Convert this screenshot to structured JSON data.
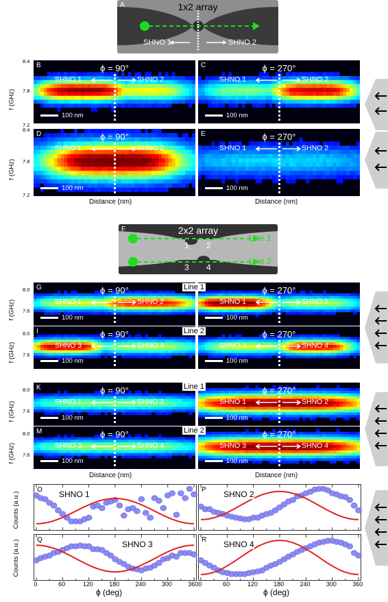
{
  "panelA": {
    "letter": "A",
    "title": "1x2 array",
    "shno_left": "SHNO 1",
    "shno_right": "SHNO 2"
  },
  "panelF": {
    "letter": "F",
    "title": "2x2 array",
    "n1": "1",
    "n2": "2",
    "n3": "3",
    "n4": "4",
    "line1": "Line 1",
    "line2": "Line 2"
  },
  "row1": {
    "y_axis_label": "f (GHz)",
    "y_ticks_BC": [
      "8.4",
      "7.8",
      "7.2"
    ],
    "y_ticks_DE": [
      "8.4",
      "7.8",
      "7.2"
    ],
    "x_axis_label": "Distance (nm)",
    "panels": [
      {
        "letter": "B",
        "phi": "ϕ = 90°",
        "left": "SHNO 1",
        "right": "SHNO 2",
        "scale": "100 nm"
      },
      {
        "letter": "C",
        "phi": "ϕ = 270°",
        "left": "SHNO 1",
        "right": "SHNO 2",
        "scale": "100 nm"
      },
      {
        "letter": "D",
        "phi": "ϕ = 90°",
        "left": "SHNO 1",
        "right": "SHNO 2",
        "scale": "100 nm"
      },
      {
        "letter": "E",
        "phi": "ϕ = 270°",
        "left": "SHNO 1",
        "right": "SHNO 2",
        "scale": "100 nm"
      }
    ]
  },
  "row2": {
    "y_axis_label": "f (GHz)",
    "y_ticks": [
      "8.0",
      "7.6"
    ],
    "x_axis_label": "Distance (nm)",
    "line1": "Line 1",
    "line2": "Line 2",
    "panels": [
      {
        "letter": "G",
        "phi": "ϕ = 90°",
        "left": "SHNO 1",
        "right": "SHNO 2",
        "scale": "100 nm"
      },
      {
        "letter": "H",
        "phi": "ϕ = 270°",
        "left": "SHNO 1",
        "right": "SHNO 2",
        "scale": "100 nm"
      },
      {
        "letter": "I",
        "phi": "ϕ = 90°",
        "left": "SHNO 3",
        "right": "SHNO 4",
        "scale": "100 nm"
      },
      {
        "letter": "J",
        "phi": "ϕ = 270°",
        "left": "SHNO 3",
        "right": "SHNO 4",
        "scale": "100 nm"
      },
      {
        "letter": "K",
        "phi": "ϕ = 90°",
        "left": "SHNO 1",
        "right": "SHNO 2",
        "scale": "100 nm"
      },
      {
        "letter": "L",
        "phi": "ϕ = 270°",
        "left": "SHNO 1",
        "right": "SHNO 2",
        "scale": "100 nm"
      },
      {
        "letter": "M",
        "phi": "ϕ = 90°",
        "left": "SHNO 3",
        "right": "SHNO 4",
        "scale": "100 nm"
      },
      {
        "letter": "N",
        "phi": "ϕ = 270°",
        "left": "SHNO 3",
        "right": "SHNO 4",
        "scale": "100 nm"
      }
    ]
  },
  "chart_data": {
    "type": "scatter",
    "xlabel": "ϕ (deg)",
    "ylabel": "Counts (a.u.)",
    "xlim": [
      0,
      360
    ],
    "x_ticks": [
      "0",
      "60",
      "120",
      "180",
      "240",
      "300",
      "360"
    ],
    "panels": [
      {
        "letter": "O",
        "name": "SHNO 1",
        "x": [
          0,
          10,
          20,
          30,
          40,
          50,
          60,
          70,
          80,
          90,
          100,
          110,
          120,
          130,
          140,
          150,
          160,
          170,
          180,
          190,
          200,
          210,
          220,
          230,
          240,
          250,
          260,
          270,
          280,
          290,
          300,
          310,
          320,
          330,
          340,
          350,
          360
        ],
        "y": [
          0.82,
          0.75,
          0.72,
          0.62,
          0.55,
          0.42,
          0.32,
          0.22,
          0.12,
          0.12,
          0.12,
          0.18,
          0.22,
          0.52,
          0.55,
          0.48,
          0.62,
          0.66,
          0.7,
          0.55,
          0.28,
          0.45,
          0.48,
          0.4,
          0.72,
          0.35,
          0.22,
          0.75,
          0.68,
          0.48,
          0.82,
          0.88,
          0.3,
          0.88,
          0.75,
          1.0,
          0.85
        ],
        "fit_offset": 0.4,
        "fit_amplitude": 0.34,
        "fit_phase_deg": 90
      },
      {
        "letter": "P",
        "name": "SHNO 2",
        "x": [
          0,
          10,
          20,
          30,
          40,
          50,
          60,
          70,
          80,
          90,
          100,
          110,
          120,
          130,
          140,
          150,
          160,
          170,
          180,
          190,
          200,
          210,
          220,
          230,
          240,
          250,
          260,
          270,
          280,
          290,
          300,
          310,
          320,
          330,
          340,
          350,
          360
        ],
        "y": [
          0.52,
          0.45,
          0.45,
          0.38,
          0.35,
          0.32,
          0.28,
          0.25,
          0.22,
          0.2,
          0.18,
          0.18,
          0.22,
          0.22,
          0.28,
          0.32,
          0.35,
          0.42,
          0.5,
          0.58,
          0.66,
          0.7,
          0.8,
          0.82,
          0.88,
          0.92,
          0.98,
          1.0,
          1.0,
          0.96,
          0.88,
          0.85,
          0.8,
          0.78,
          0.7,
          0.55,
          0.42
        ],
        "fit_offset": 0.55,
        "fit_amplitude": 0.38,
        "fit_phase_deg": 90
      },
      {
        "letter": "Q",
        "name": "SHNO 3",
        "x": [
          0,
          10,
          20,
          30,
          40,
          50,
          60,
          70,
          80,
          90,
          100,
          110,
          120,
          130,
          140,
          150,
          160,
          170,
          180,
          190,
          200,
          210,
          220,
          230,
          240,
          250,
          260,
          270,
          280,
          290,
          300,
          310,
          320,
          330,
          340,
          350,
          360
        ],
        "y": [
          0.42,
          0.48,
          0.52,
          0.55,
          0.62,
          0.65,
          0.7,
          0.75,
          0.8,
          0.8,
          0.82,
          0.8,
          0.8,
          0.72,
          0.72,
          0.7,
          0.62,
          0.55,
          0.45,
          0.38,
          0.32,
          0.25,
          0.2,
          0.18,
          0.15,
          0.2,
          0.22,
          0.28,
          0.35,
          0.45,
          0.48,
          0.55,
          0.52,
          0.62,
          0.62,
          0.62,
          0.58
        ],
        "fit_offset": 0.47,
        "fit_amplitude": 0.36,
        "fit_phase_deg": 270
      },
      {
        "letter": "R",
        "name": "SHNO 4",
        "x": [
          0,
          10,
          20,
          30,
          40,
          50,
          60,
          70,
          80,
          90,
          100,
          110,
          120,
          130,
          140,
          150,
          160,
          170,
          180,
          190,
          200,
          210,
          220,
          230,
          240,
          250,
          260,
          270,
          280,
          290,
          300,
          310,
          320,
          330,
          340,
          350,
          360
        ],
        "y": [
          0.42,
          0.35,
          0.28,
          0.22,
          0.15,
          0.1,
          0.08,
          0.05,
          0.05,
          0.05,
          0.05,
          0.08,
          0.1,
          0.12,
          0.15,
          0.22,
          0.28,
          0.32,
          0.38,
          0.45,
          0.52,
          0.58,
          0.65,
          0.7,
          0.75,
          0.8,
          0.85,
          0.9,
          0.92,
          0.95,
          0.95,
          0.92,
          0.9,
          0.85,
          0.8,
          0.62,
          0.55
        ],
        "fit_offset": 0.5,
        "fit_amplitude": 0.46,
        "fit_phase_deg": 90
      }
    ]
  }
}
